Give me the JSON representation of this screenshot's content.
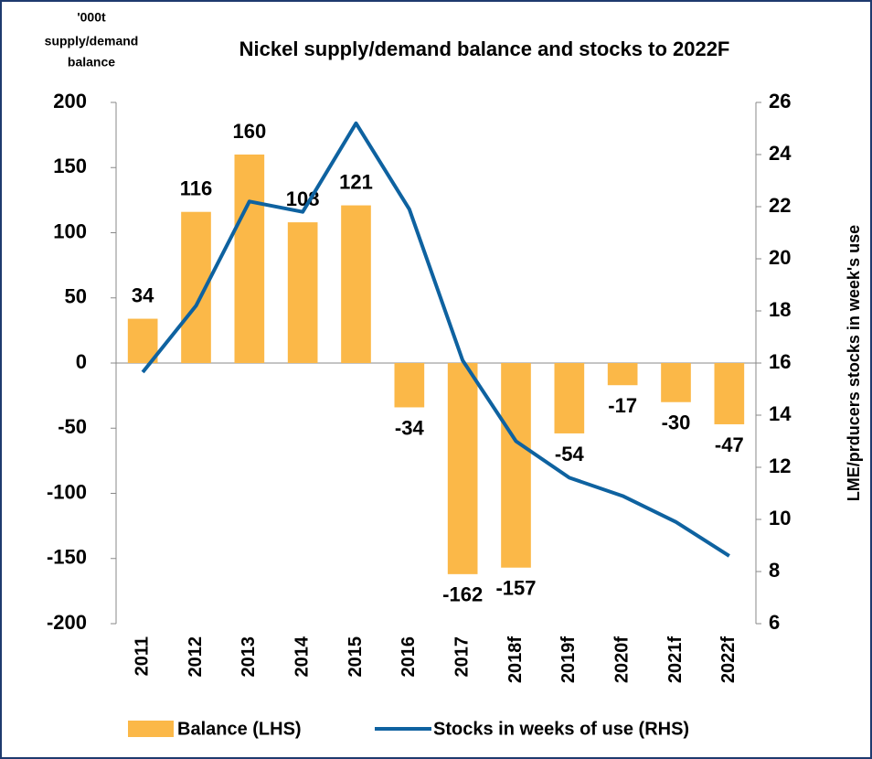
{
  "chart_data": {
    "type": "bar_line",
    "title": "Nickel supply/demand balance and stocks to 2022F",
    "ylabel": [
      "'000t",
      "supply/demand",
      "balance"
    ],
    "y2label": "LME/prducers stocks in week's use",
    "categories": [
      "2011",
      "2012",
      "2013",
      "2014",
      "2015",
      "2016",
      "2017",
      "2018f",
      "2019f",
      "2020f",
      "2021f",
      "2022f"
    ],
    "series": [
      {
        "name": "Balance (LHS)",
        "color": "#fbb848",
        "type": "bar",
        "values": [
          34,
          116,
          160,
          108,
          121,
          -34,
          -162,
          -157,
          -54,
          -17,
          -30,
          -47
        ]
      },
      {
        "name": "Stocks in weeks of use (RHS)",
        "color": "#0e62a0",
        "type": "line",
        "axis": "y2",
        "values": [
          15.65,
          18.2,
          22.2,
          21.8,
          25.2,
          21.9,
          16.1,
          13.0,
          11.6,
          10.9,
          9.9,
          8.6
        ]
      }
    ],
    "ylim": [
      -200,
      200
    ],
    "yticks": [
      -200,
      -150,
      -100,
      -50,
      0,
      50,
      100,
      150,
      200
    ],
    "y2lim": [
      6,
      26
    ],
    "y2ticks": [
      6,
      8,
      10,
      12,
      14,
      16,
      18,
      20,
      22,
      24,
      26
    ],
    "legend": "bottom"
  }
}
